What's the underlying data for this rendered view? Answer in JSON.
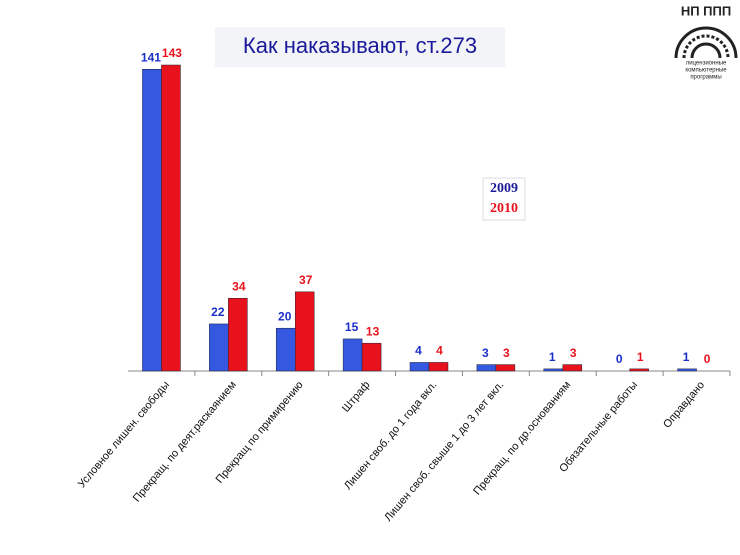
{
  "chart_data": {
    "type": "bar",
    "title": "Как наказывают, ст.273",
    "categories": [
      "Условное лишен. свободы",
      "Прекращ. по деят.раскаянием",
      "Прекращ по примирению",
      "Штраф",
      "Лишен своб. до 1 года вкл.",
      "Лишен своб. свыше 1 до 3 лет вкл.",
      "Прекращ. по др.основаниям",
      "Обязательные работы",
      "Оправдано"
    ],
    "series": [
      {
        "name": "2009",
        "color": "#3458e0",
        "values": [
          141,
          22,
          20,
          15,
          4,
          3,
          1,
          0,
          1
        ]
      },
      {
        "name": "2010",
        "color": "#e8121c",
        "values": [
          143,
          34,
          37,
          13,
          4,
          3,
          3,
          1,
          0
        ]
      }
    ]
  },
  "logo": {
    "title": "НП ППП",
    "lines": [
      "лицензионные",
      "компьютерные",
      "программы"
    ]
  }
}
